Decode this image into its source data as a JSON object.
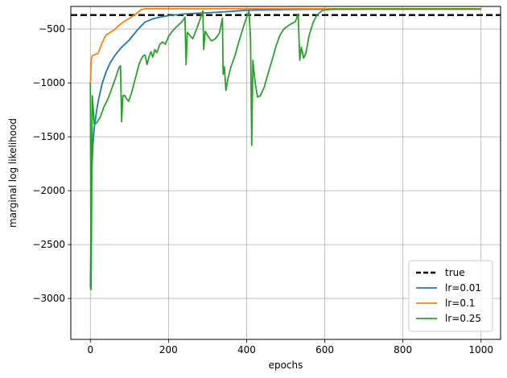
{
  "chart_data": {
    "type": "line",
    "xlabel": "epochs",
    "ylabel": "marginal log likelihood",
    "xlim": [
      -50,
      1050
    ],
    "ylim": [
      -3380,
      -290
    ],
    "xticks": [
      0,
      200,
      400,
      600,
      800,
      1000
    ],
    "yticks": [
      -3000,
      -2500,
      -2000,
      -1500,
      -1000,
      -500
    ],
    "grid": true,
    "legend_position": "lower-right",
    "hline": {
      "name": "true",
      "y": -370,
      "color": "#000000",
      "style": "dashed"
    },
    "series": [
      {
        "name": "lr=0.01",
        "color": "#1f77b4",
        "points": [
          [
            0,
            -2900
          ],
          [
            3,
            -1900
          ],
          [
            6,
            -1600
          ],
          [
            10,
            -1420
          ],
          [
            15,
            -1280
          ],
          [
            20,
            -1170
          ],
          [
            30,
            -1010
          ],
          [
            40,
            -900
          ],
          [
            50,
            -820
          ],
          [
            60,
            -760
          ],
          [
            70,
            -710
          ],
          [
            80,
            -670
          ],
          [
            100,
            -600
          ],
          [
            120,
            -510
          ],
          [
            140,
            -435
          ],
          [
            160,
            -405
          ],
          [
            180,
            -388
          ],
          [
            200,
            -375
          ],
          [
            240,
            -360
          ],
          [
            280,
            -352
          ],
          [
            320,
            -345
          ],
          [
            360,
            -336
          ],
          [
            400,
            -325
          ],
          [
            500,
            -318
          ],
          [
            600,
            -316
          ],
          [
            700,
            -315
          ],
          [
            800,
            -315
          ],
          [
            900,
            -315
          ],
          [
            1000,
            -315
          ]
        ]
      },
      {
        "name": "lr=0.1",
        "color": "#ff7f0e",
        "points": [
          [
            0,
            -1000
          ],
          [
            3,
            -760
          ],
          [
            6,
            -745
          ],
          [
            20,
            -725
          ],
          [
            30,
            -630
          ],
          [
            40,
            -555
          ],
          [
            60,
            -510
          ],
          [
            80,
            -445
          ],
          [
            100,
            -400
          ],
          [
            115,
            -365
          ],
          [
            130,
            -320
          ],
          [
            140,
            -312
          ],
          [
            200,
            -312
          ],
          [
            400,
            -312
          ],
          [
            600,
            -312
          ],
          [
            800,
            -312
          ],
          [
            1000,
            -312
          ]
        ]
      },
      {
        "name": "lr=0.25",
        "color": "#2ca02c",
        "points": [
          [
            0,
            -1000
          ],
          [
            2,
            -2920
          ],
          [
            5,
            -1120
          ],
          [
            10,
            -1380
          ],
          [
            15,
            -1375
          ],
          [
            25,
            -1320
          ],
          [
            35,
            -1220
          ],
          [
            45,
            -1150
          ],
          [
            55,
            -1050
          ],
          [
            65,
            -950
          ],
          [
            73,
            -860
          ],
          [
            77,
            -840
          ],
          [
            80,
            -1360
          ],
          [
            83,
            -1120
          ],
          [
            88,
            -1115
          ],
          [
            93,
            -1150
          ],
          [
            98,
            -1170
          ],
          [
            105,
            -1100
          ],
          [
            115,
            -960
          ],
          [
            125,
            -820
          ],
          [
            130,
            -780
          ],
          [
            135,
            -750
          ],
          [
            140,
            -740
          ],
          [
            145,
            -830
          ],
          [
            150,
            -760
          ],
          [
            155,
            -710
          ],
          [
            160,
            -760
          ],
          [
            165,
            -690
          ],
          [
            170,
            -720
          ],
          [
            178,
            -640
          ],
          [
            185,
            -620
          ],
          [
            192,
            -640
          ],
          [
            200,
            -570
          ],
          [
            210,
            -520
          ],
          [
            220,
            -480
          ],
          [
            235,
            -430
          ],
          [
            242,
            -390
          ],
          [
            245,
            -830
          ],
          [
            248,
            -530
          ],
          [
            255,
            -560
          ],
          [
            262,
            -590
          ],
          [
            270,
            -520
          ],
          [
            278,
            -440
          ],
          [
            288,
            -330
          ],
          [
            290,
            -690
          ],
          [
            294,
            -520
          ],
          [
            300,
            -560
          ],
          [
            310,
            -610
          ],
          [
            320,
            -590
          ],
          [
            330,
            -540
          ],
          [
            338,
            -400
          ],
          [
            340,
            -920
          ],
          [
            343,
            -850
          ],
          [
            347,
            -1070
          ],
          [
            352,
            -960
          ],
          [
            360,
            -850
          ],
          [
            370,
            -750
          ],
          [
            380,
            -620
          ],
          [
            390,
            -500
          ],
          [
            400,
            -390
          ],
          [
            406,
            -330
          ],
          [
            410,
            -580
          ],
          [
            413,
            -1580
          ],
          [
            416,
            -790
          ],
          [
            422,
            -1000
          ],
          [
            428,
            -1130
          ],
          [
            435,
            -1120
          ],
          [
            445,
            -1040
          ],
          [
            455,
            -910
          ],
          [
            465,
            -790
          ],
          [
            475,
            -660
          ],
          [
            485,
            -560
          ],
          [
            495,
            -500
          ],
          [
            510,
            -460
          ],
          [
            525,
            -430
          ],
          [
            532,
            -360
          ],
          [
            536,
            -790
          ],
          [
            540,
            -670
          ],
          [
            546,
            -770
          ],
          [
            552,
            -720
          ],
          [
            560,
            -560
          ],
          [
            570,
            -440
          ],
          [
            580,
            -370
          ],
          [
            595,
            -325
          ],
          [
            620,
            -315
          ],
          [
            700,
            -315
          ],
          [
            800,
            -315
          ],
          [
            900,
            -315
          ],
          [
            1000,
            -315
          ]
        ]
      }
    ]
  }
}
